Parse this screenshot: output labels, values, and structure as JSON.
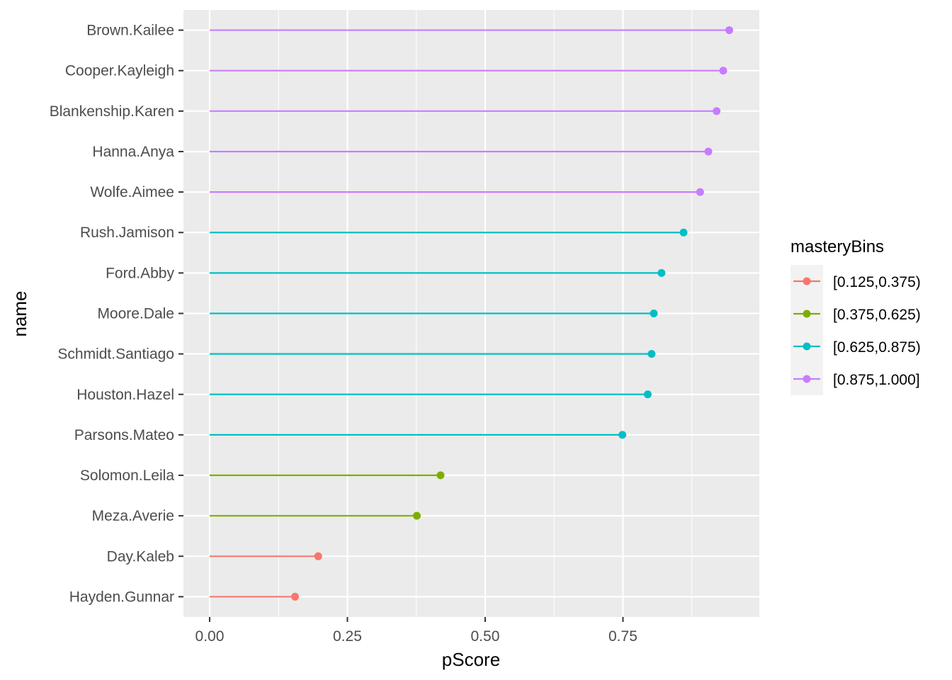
{
  "chart_data": {
    "type": "lollipop",
    "title": "",
    "xlabel": "pScore",
    "ylabel": "name",
    "xlim": [
      -0.0475,
      0.9975
    ],
    "x_ticks": [
      0.0,
      0.25,
      0.5,
      0.75
    ],
    "x_tick_labels": [
      "0.00",
      "0.25",
      "0.50",
      "0.75"
    ],
    "grid": true,
    "background": "#ebebeb",
    "legend": {
      "title": "masteryBins",
      "position": "right",
      "entries": [
        {
          "label": "[0.125,0.375)",
          "color": "#f8766d"
        },
        {
          "label": "[0.375,0.625)",
          "color": "#7cae00"
        },
        {
          "label": "[0.625,0.875)",
          "color": "#00bfc4"
        },
        {
          "label": "[0.875,1.000]",
          "color": "#c77cff"
        }
      ]
    },
    "points": [
      {
        "name": "Brown.Kailee",
        "value": 0.943,
        "bin": 3
      },
      {
        "name": "Cooper.Kayleigh",
        "value": 0.932,
        "bin": 3
      },
      {
        "name": "Blankenship.Karen",
        "value": 0.92,
        "bin": 3
      },
      {
        "name": "Hanna.Anya",
        "value": 0.905,
        "bin": 3
      },
      {
        "name": "Wolfe.Aimee",
        "value": 0.89,
        "bin": 3
      },
      {
        "name": "Rush.Jamison",
        "value": 0.86,
        "bin": 2
      },
      {
        "name": "Ford.Abby",
        "value": 0.82,
        "bin": 2
      },
      {
        "name": "Moore.Dale",
        "value": 0.806,
        "bin": 2
      },
      {
        "name": "Schmidt.Santiago",
        "value": 0.802,
        "bin": 2
      },
      {
        "name": "Houston.Hazel",
        "value": 0.795,
        "bin": 2
      },
      {
        "name": "Parsons.Mateo",
        "value": 0.749,
        "bin": 2
      },
      {
        "name": "Solomon.Leila",
        "value": 0.419,
        "bin": 1
      },
      {
        "name": "Meza.Averie",
        "value": 0.376,
        "bin": 1
      },
      {
        "name": "Day.Kaleb",
        "value": 0.197,
        "bin": 0
      },
      {
        "name": "Hayden.Gunnar",
        "value": 0.155,
        "bin": 0
      }
    ]
  }
}
